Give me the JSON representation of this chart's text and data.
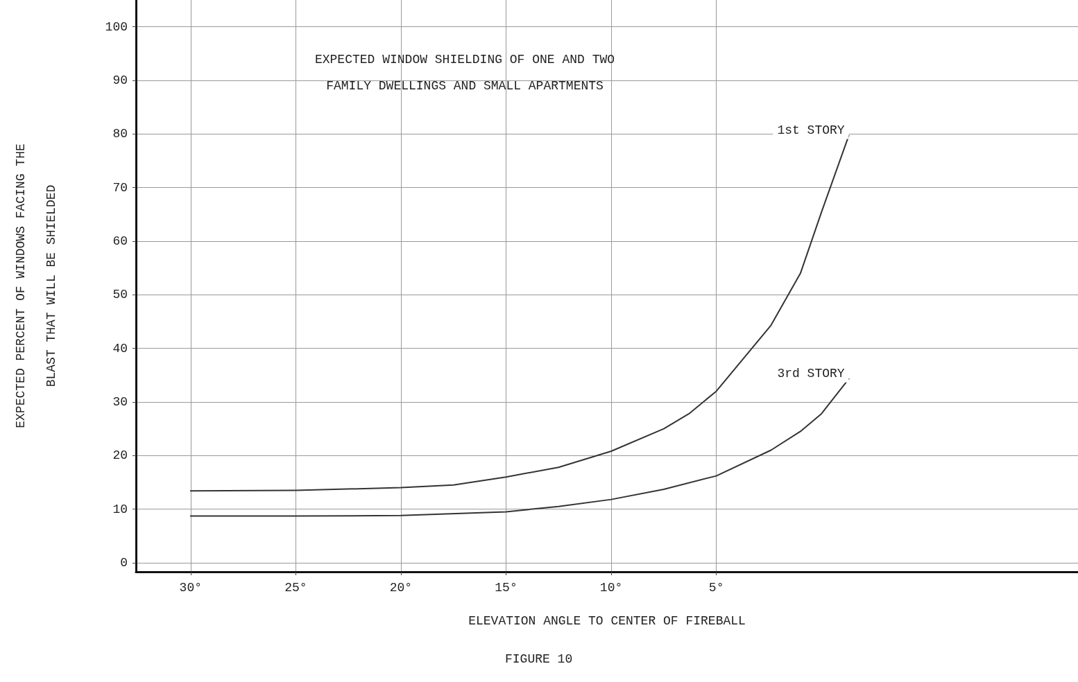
{
  "chart_data": {
    "type": "line",
    "title": "EXPECTED WINDOW SHIELDING OF ONE AND TWO\nFAMILY DWELLINGS AND SMALL APARTMENTS",
    "xlabel": "ELEVATION ANGLE TO CENTER OF FIREBALL",
    "ylabel": "EXPECTED PERCENT OF WINDOWS FACING THE\nBLAST THAT WILL BE SHIELDED",
    "annotations": [
      "FIGURE 10"
    ],
    "series": [
      {
        "name": "1st STORY",
        "color": "#333333",
        "x": [
          30,
          25,
          20,
          17.5,
          15,
          12.5,
          10,
          7.5,
          6.3,
          5,
          2.4,
          1,
          0,
          -1.3
        ],
        "values": [
          13.4,
          13.5,
          14,
          14.5,
          16,
          17.8,
          20.8,
          25,
          27.8,
          32,
          44.3,
          54,
          65.4,
          79.7
        ]
      },
      {
        "name": "3rd STORY",
        "color": "#333333",
        "x": [
          30,
          25,
          20,
          15,
          12.5,
          10,
          7.5,
          5,
          2.4,
          1,
          0,
          -1.3
        ],
        "values": [
          8.7,
          8.7,
          8.8,
          9.5,
          10.5,
          11.8,
          13.7,
          16.2,
          21,
          24.5,
          27.8,
          34.3
        ]
      }
    ],
    "xlim": [
      32.6,
      -12.2
    ],
    "xticks": [
      {
        "value": 30,
        "label": "30°"
      },
      {
        "value": 25,
        "label": "25°"
      },
      {
        "value": 20,
        "label": "20°"
      },
      {
        "value": 15,
        "label": "15°"
      },
      {
        "value": 10,
        "label": "10°"
      },
      {
        "value": 5,
        "label": "5°"
      }
    ],
    "ylim": [
      -1.7,
      105
    ],
    "yticks": [
      0,
      10,
      20,
      30,
      40,
      50,
      60,
      70,
      80,
      90,
      100
    ],
    "grid": true,
    "legend": false,
    "marker": "none",
    "line_style": "solid"
  }
}
